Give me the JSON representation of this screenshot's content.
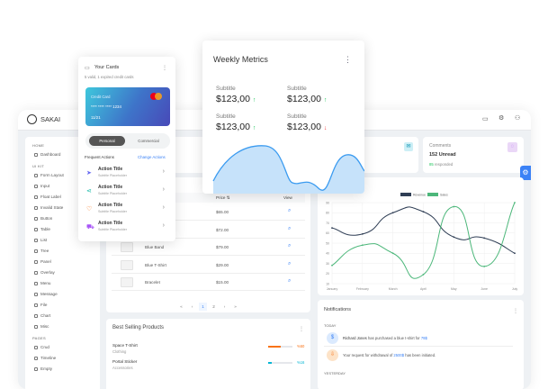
{
  "app": {
    "name": "SAKAI"
  },
  "topbar": {
    "icons": [
      "calendar-icon",
      "settings-icon",
      "user-icon"
    ]
  },
  "sidebar": {
    "sections": [
      {
        "label": "HOME",
        "items": [
          "Dashboard"
        ]
      },
      {
        "label": "UI KIT",
        "items": [
          "Form Layout",
          "Input",
          "Float Label",
          "Invalid State",
          "Button",
          "Table",
          "List",
          "Tree",
          "Panel",
          "Overlay",
          "Menu",
          "Message",
          "File",
          "Chart",
          "Misc"
        ]
      },
      {
        "label": "PAGES",
        "items": [
          "Crud",
          "Timeline",
          "Empty"
        ]
      }
    ]
  },
  "stats": {
    "comments": {
      "title": "Comments",
      "value": "152 Unread",
      "highlight": "85",
      "suffix": "responded"
    }
  },
  "table": {
    "headers": {
      "price": "Price",
      "view": "View"
    },
    "rows": [
      {
        "name": "",
        "price": "$65.00"
      },
      {
        "name": "",
        "price": "$72.00"
      },
      {
        "name": "Blue Band",
        "price": "$79.00"
      },
      {
        "name": "Blue T-Shirt",
        "price": "$29.00"
      },
      {
        "name": "Bracelet",
        "price": "$15.00"
      }
    ],
    "pagination": {
      "first": "«",
      "prev": "‹",
      "pages": [
        "1",
        "2"
      ],
      "active": "1",
      "next": "›",
      "last": "»"
    }
  },
  "best_selling": {
    "title": "Best Selling Products",
    "items": [
      {
        "name": "Space T-Shirt",
        "category": "Clothing",
        "percent": 50,
        "label": "%50",
        "color": "#f97316"
      },
      {
        "name": "Portal Sticker",
        "category": "Accessories",
        "percent": 16,
        "label": "%16",
        "color": "#06b6d4"
      }
    ]
  },
  "notifications": {
    "title": "Notifications",
    "today": "TODAY",
    "yesterday": "YESTERDAY",
    "items": [
      {
        "pre": "Richard Jones",
        "mid": " has purchased a blue t-shirt for ",
        "link": "79$"
      },
      {
        "pre": "",
        "mid": "Your request for withdrawal of ",
        "link": "2500$",
        "post": " has been initiated."
      }
    ]
  },
  "cards_panel": {
    "title": "Your Cards",
    "subtitle": "5 valid, 1 expired credit cards",
    "card": {
      "label": "Credit Card",
      "number": "**** **** **** 1234",
      "expiry": "11/21",
      "brand": "mastercard"
    },
    "toggle": [
      "Personal",
      "Commercial"
    ],
    "active": "Personal",
    "frequent": "Frequent Actions",
    "change": "Change Actions",
    "actions": [
      {
        "title": "Action Title",
        "subtitle": "Subtitle Placeholder",
        "icon": "send-icon",
        "color": "#6366f1"
      },
      {
        "title": "Action Title",
        "subtitle": "Subtitle Placeholder",
        "icon": "share-icon",
        "color": "#14b8a6"
      },
      {
        "title": "Action Title",
        "subtitle": "Subtitle Placeholder",
        "icon": "shield-icon",
        "color": "#f97316"
      },
      {
        "title": "Action Title",
        "subtitle": "Subtitle Placeholder",
        "icon": "cart-icon",
        "color": "#a855f7"
      }
    ]
  },
  "weekly": {
    "title": "Weekly Metrics",
    "metrics": [
      {
        "subtitle": "Subtitle",
        "value": "$123,00",
        "trend": "up"
      },
      {
        "subtitle": "Subtitle",
        "value": "$123,00",
        "trend": "up"
      },
      {
        "subtitle": "Subtitle",
        "value": "$123,00",
        "trend": "up"
      },
      {
        "subtitle": "Subtitle",
        "value": "$123,00",
        "trend": "down"
      }
    ]
  },
  "chart_data": {
    "type": "line",
    "categories": [
      "January",
      "February",
      "March",
      "April",
      "May",
      "June",
      "July"
    ],
    "series": [
      {
        "name": "Revenue",
        "values": [
          65,
          59,
          80,
          81,
          56,
          55,
          40
        ],
        "color": "#2f3e55"
      },
      {
        "name": "Sales",
        "values": [
          28,
          48,
          40,
          19,
          86,
          27,
          90
        ],
        "color": "#4cb77a"
      }
    ],
    "ylim": [
      10,
      90
    ],
    "yticks": [
      10,
      20,
      30,
      40,
      50,
      60,
      70,
      80,
      90
    ],
    "grid": true,
    "legend": "top"
  }
}
